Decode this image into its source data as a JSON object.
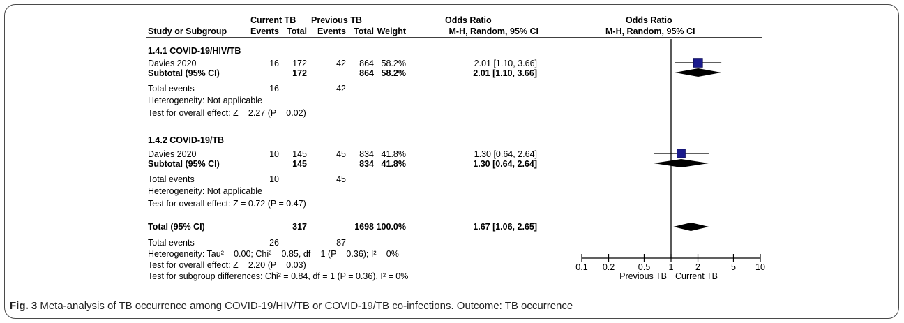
{
  "header": {
    "group1": "Current TB",
    "group2": "Previous TB",
    "or_left": "Odds Ratio",
    "or_right": "Odds Ratio",
    "study": "Study or Subgroup",
    "events1": "Events",
    "total1": "Total",
    "events2": "Events",
    "total2": "Total",
    "weight": "Weight",
    "method_left": "M-H, Random, 95% CI",
    "method_right": "M-H, Random, 95% CI"
  },
  "subgroups": [
    {
      "title": "1.4.1 COVID-19/HIV/TB",
      "study": {
        "name": "Davies 2020",
        "e1": "16",
        "t1": "172",
        "e2": "42",
        "t2": "864",
        "w": "58.2%",
        "ci": "2.01 [1.10, 3.66]"
      },
      "subtotal": {
        "name": "Subtotal (95% CI)",
        "t1": "172",
        "t2": "864",
        "w": "58.2%",
        "ci": "2.01 [1.10, 3.66]"
      },
      "events": {
        "name": "Total events",
        "e1": "16",
        "e2": "42"
      },
      "het": "Heterogeneity: Not applicable",
      "test": "Test for overall effect: Z = 2.27 (P = 0.02)"
    },
    {
      "title": "1.4.2 COVID-19/TB",
      "study": {
        "name": "Davies 2020",
        "e1": "10",
        "t1": "145",
        "e2": "45",
        "t2": "834",
        "w": "41.8%",
        "ci": "1.30 [0.64, 2.64]"
      },
      "subtotal": {
        "name": "Subtotal (95% CI)",
        "t1": "145",
        "t2": "834",
        "w": "41.8%",
        "ci": "1.30 [0.64, 2.64]"
      },
      "events": {
        "name": "Total events",
        "e1": "10",
        "e2": "45"
      },
      "het": "Heterogeneity: Not applicable",
      "test": "Test for overall effect: Z = 0.72 (P = 0.47)"
    }
  ],
  "total": {
    "name": "Total (95% CI)",
    "t1": "317",
    "t2": "1698",
    "w": "100.0%",
    "ci": "1.67 [1.06, 2.65]",
    "events_name": "Total events",
    "e1": "26",
    "e2": "87",
    "het": "Heterogeneity: Tau² = 0.00; Chi² = 0.85, df = 1 (P = 0.36); I² = 0%",
    "test": "Test for overall effect: Z = 2.20 (P = 0.03)",
    "subgroup_test": "Test for subgroup differences: Chi² = 0.84, df = 1 (P = 0.36), I² = 0%"
  },
  "caption": {
    "label": "Fig. 3",
    "text": " Meta-analysis of TB occurrence among COVID-19/HIV/TB or COVID-19/TB co-infections. Outcome: TB occurrence"
  },
  "chart_data": {
    "type": "forest",
    "x_scale": "log",
    "xlim": [
      0.1,
      10
    ],
    "null_line": 1,
    "ticks": [
      0.1,
      0.2,
      0.5,
      1,
      2,
      5,
      10
    ],
    "tick_labels": [
      "0.1",
      "0.2",
      "0.5",
      "1",
      "2",
      "5",
      "10"
    ],
    "favours_left": "Previous TB",
    "favours_right": "Current TB",
    "marker_color": "#1a1a8c",
    "studies": [
      {
        "name": "Davies 2020",
        "subgroup": "1.4.1 COVID-19/HIV/TB",
        "or": 2.01,
        "lo": 1.1,
        "hi": 3.66,
        "weight": 58.2
      },
      {
        "name": "Davies 2020",
        "subgroup": "1.4.2 COVID-19/TB",
        "or": 1.3,
        "lo": 0.64,
        "hi": 2.64,
        "weight": 41.8
      }
    ],
    "diamonds": [
      {
        "label": "Subtotal (95% CI)",
        "subgroup": "1.4.1 COVID-19/HIV/TB",
        "or": 2.01,
        "lo": 1.1,
        "hi": 3.66
      },
      {
        "label": "Subtotal (95% CI)",
        "subgroup": "1.4.2 COVID-19/TB",
        "or": 1.3,
        "lo": 0.64,
        "hi": 2.64
      },
      {
        "label": "Total (95% CI)",
        "or": 1.67,
        "lo": 1.06,
        "hi": 2.65
      }
    ]
  }
}
